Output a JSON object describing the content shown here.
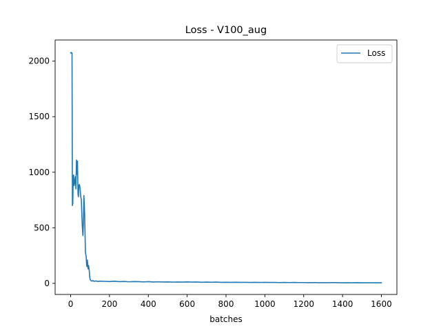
{
  "chart_data": {
    "type": "line",
    "title": "Loss - V100_aug",
    "xlabel": "batches",
    "ylabel": "",
    "xlim": [
      -80,
      1680
    ],
    "ylim": [
      -100,
      2190
    ],
    "xticks": [
      0,
      200,
      400,
      600,
      800,
      1000,
      1200,
      1400,
      1600
    ],
    "yticks": [
      0,
      500,
      1000,
      1500,
      2000
    ],
    "grid": false,
    "legend": {
      "placement": "top-right"
    },
    "series": [
      {
        "name": "Loss",
        "color": "#1f77b4",
        "x": [
          0,
          3,
          5,
          7,
          9,
          11,
          13,
          15,
          18,
          20,
          24,
          27,
          30,
          33,
          35,
          38,
          40,
          42,
          45,
          48,
          52,
          55,
          58,
          60,
          63,
          66,
          68,
          70,
          72,
          74,
          76,
          78,
          80,
          82,
          84,
          86,
          88,
          90,
          92,
          94,
          96,
          98,
          100,
          103,
          106,
          110,
          115,
          120,
          130,
          140,
          150,
          175,
          200,
          225,
          250,
          275,
          300,
          325,
          350,
          375,
          400,
          425,
          450,
          475,
          500,
          525,
          550,
          575,
          600,
          625,
          650,
          675,
          700,
          725,
          750,
          775,
          800,
          825,
          850,
          875,
          900,
          925,
          950,
          975,
          1000,
          1025,
          1050,
          1075,
          1100,
          1125,
          1150,
          1175,
          1200,
          1225,
          1250,
          1275,
          1300,
          1325,
          1350,
          1375,
          1400,
          1425,
          1450,
          1475,
          1500,
          1525,
          1550,
          1575,
          1600
        ],
        "values": [
          2075,
          2078,
          2070,
          2072,
          700,
          720,
          960,
          975,
          880,
          900,
          960,
          850,
          1110,
          980,
          1100,
          800,
          780,
          880,
          890,
          860,
          780,
          750,
          600,
          520,
          430,
          560,
          790,
          720,
          620,
          450,
          280,
          260,
          240,
          170,
          150,
          210,
          170,
          130,
          160,
          140,
          110,
          60,
          35,
          28,
          22,
          20,
          25,
          18,
          22,
          17,
          20,
          18,
          16,
          19,
          15,
          17,
          14,
          16,
          15,
          13,
          15,
          12,
          14,
          12,
          13,
          11,
          12,
          11,
          13,
          11,
          12,
          10,
          11,
          10,
          11,
          9,
          10,
          9,
          10,
          9,
          9,
          8,
          9,
          8,
          9,
          8,
          8,
          7,
          8,
          7,
          8,
          7,
          7,
          6,
          7,
          6,
          6,
          6,
          7,
          6,
          5,
          6,
          5,
          6,
          5,
          5,
          5,
          5,
          5
        ]
      }
    ]
  }
}
